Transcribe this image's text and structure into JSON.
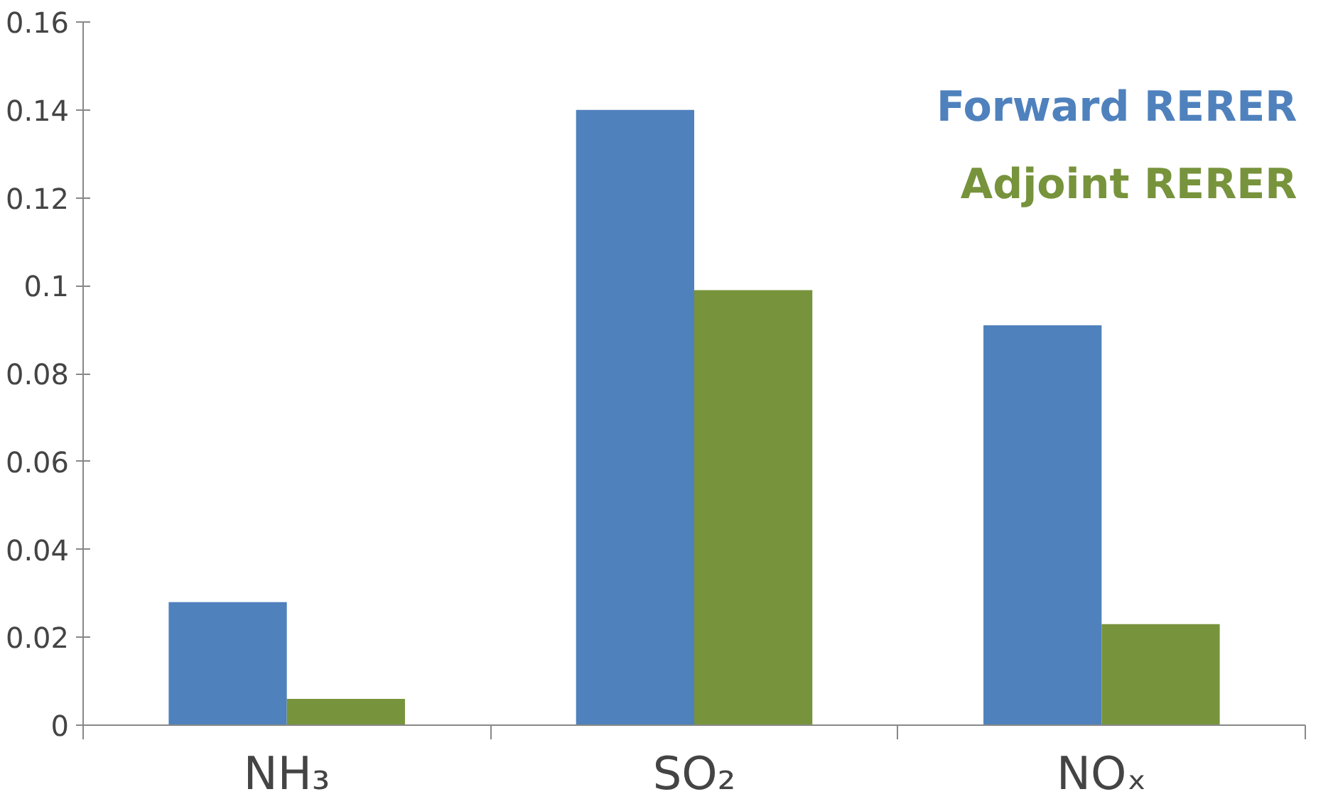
{
  "chart_data": {
    "type": "bar",
    "categories": [
      "NH₃",
      "SO₂",
      "NOₓ"
    ],
    "series": [
      {
        "name": "Forward RERER",
        "color": "#4f81bd",
        "values": [
          0.028,
          0.14,
          0.091
        ]
      },
      {
        "name": "Adjoint RERER",
        "color": "#77933c",
        "values": [
          0.006,
          0.099,
          0.023
        ]
      }
    ],
    "ylim": [
      0,
      0.16
    ],
    "yticks": [
      0,
      0.02,
      0.04,
      0.06,
      0.08,
      0.1,
      0.12,
      0.14,
      0.16
    ],
    "grid": false,
    "legend": "top right"
  }
}
